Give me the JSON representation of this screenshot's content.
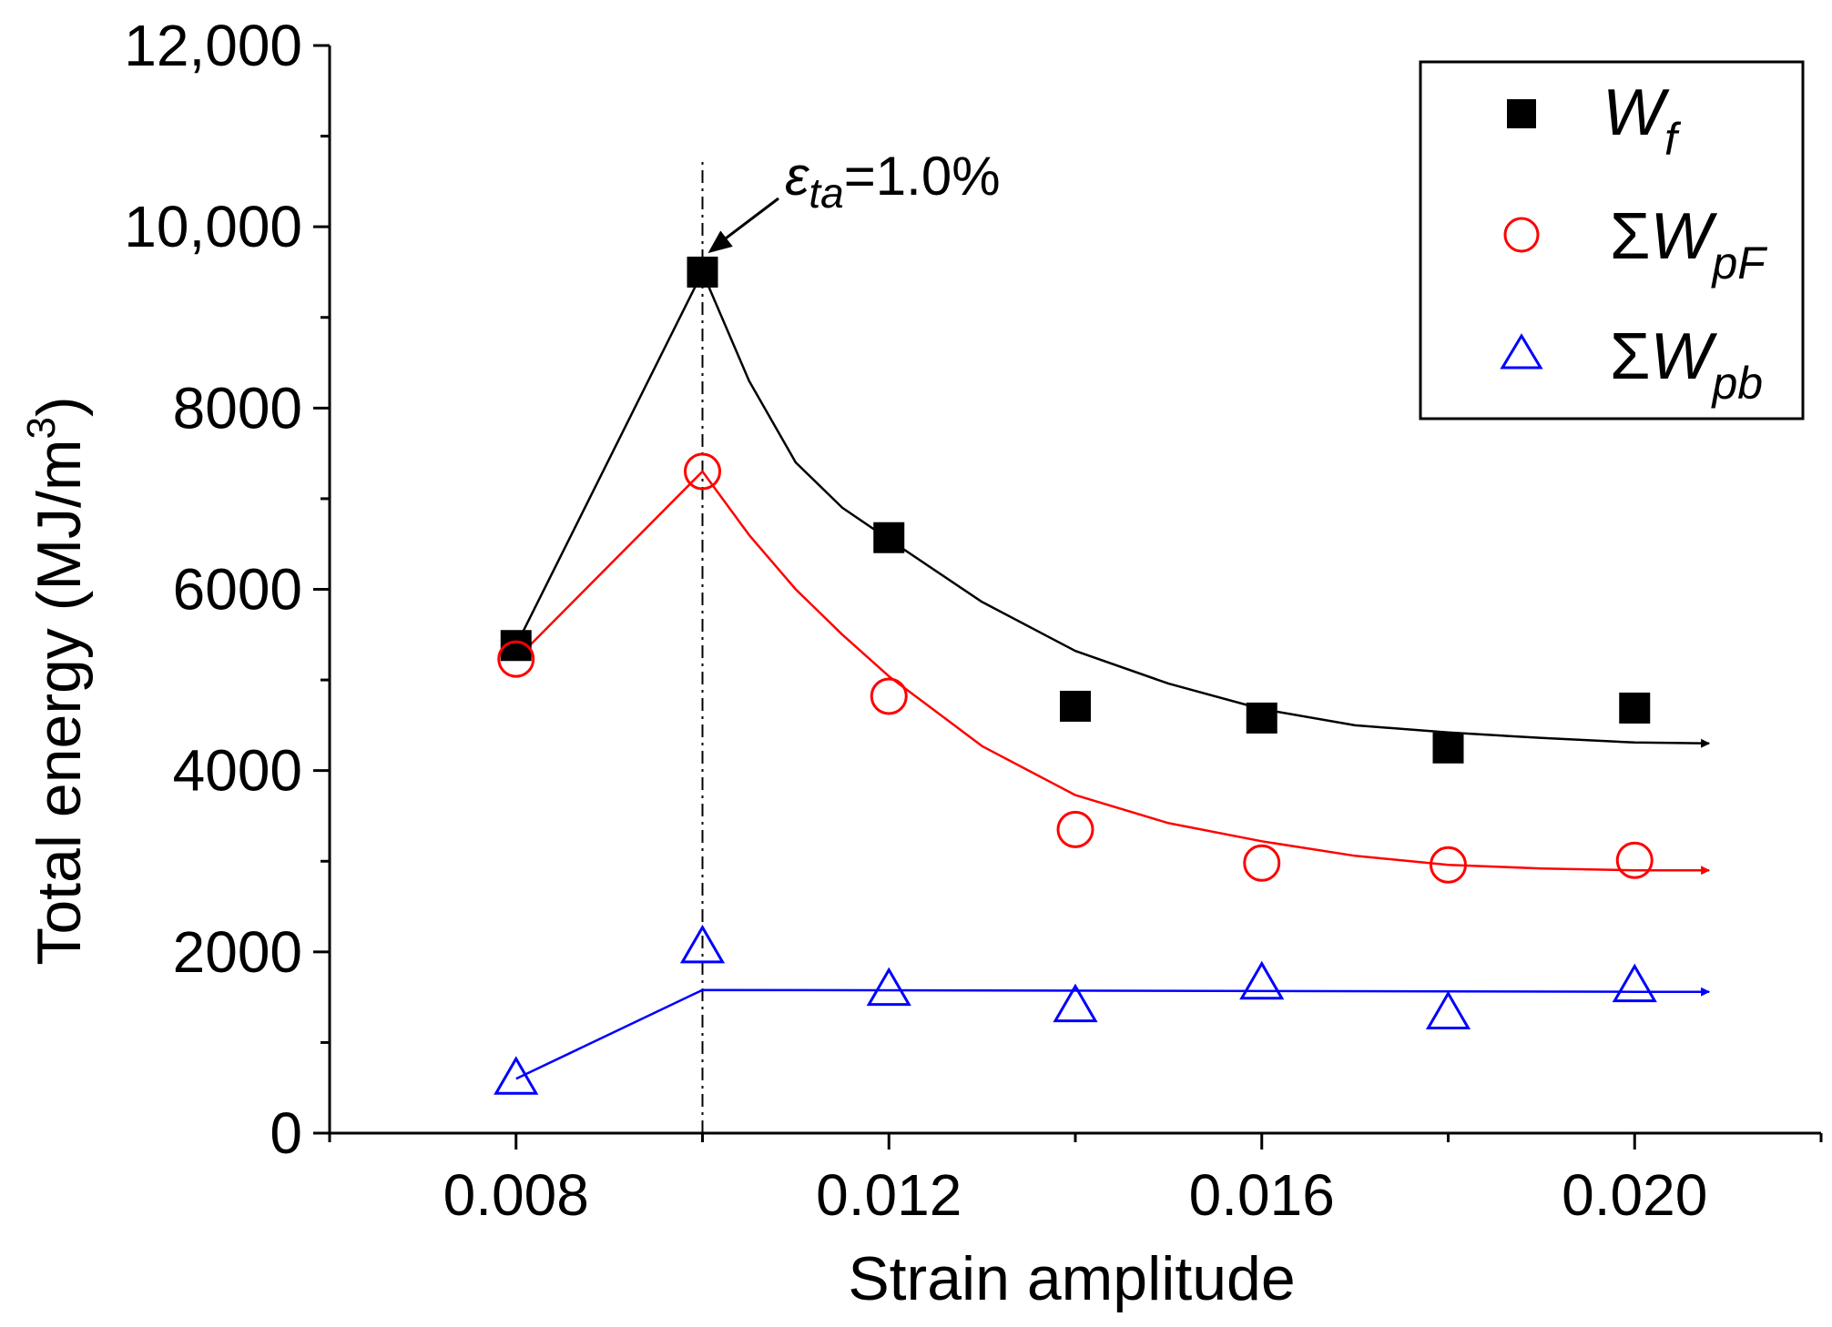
{
  "chart_data": {
    "type": "scatter",
    "title": "",
    "xlabel": "Strain amplitude",
    "ylabel": "Total energy (MJ/m³)",
    "ylabel_main": "Total energy (MJ/m",
    "ylabel_sup": "3",
    "ylabel_end": ")",
    "xlim": [
      0.006,
      0.022
    ],
    "ylim": [
      0,
      12000
    ],
    "xticks": [
      0.008,
      0.012,
      0.016,
      0.02
    ],
    "xtick_labels": [
      "0.008",
      "0.012",
      "0.016",
      "0.020"
    ],
    "minor_xticks": [
      0.006,
      0.01,
      0.014,
      0.018,
      0.022
    ],
    "yticks": [
      0,
      2000,
      4000,
      6000,
      8000,
      10000,
      12000
    ],
    "ytick_labels": [
      "0",
      "2000",
      "4000",
      "6000",
      "8000",
      "10,000",
      "12,000"
    ],
    "minor_yticks": [
      1000,
      3000,
      5000,
      7000,
      9000,
      11000
    ],
    "legend_position": "top-right",
    "series": [
      {
        "name": "Wf",
        "label_main": "W",
        "label_sub": "f",
        "sigma": "",
        "marker": "filled-square",
        "color": "#000000",
        "x": [
          0.008,
          0.01,
          0.012,
          0.014,
          0.016,
          0.018,
          0.02
        ],
        "y": [
          5380,
          9500,
          6570,
          4710,
          4580,
          4250,
          4690
        ],
        "trend": {
          "x": [
            0.008,
            0.01,
            0.0105,
            0.011,
            0.0115,
            0.012,
            0.013,
            0.014,
            0.015,
            0.016,
            0.017,
            0.018,
            0.019,
            0.02,
            0.0208
          ],
          "y": [
            5380,
            9500,
            8300,
            7400,
            6900,
            6550,
            5860,
            5320,
            4960,
            4680,
            4500,
            4420,
            4360,
            4310,
            4300
          ]
        }
      },
      {
        "name": "ΣWpF",
        "label_main": "W",
        "label_sub": "pF",
        "sigma": "Σ",
        "marker": "open-circle",
        "color": "#ff0000",
        "x": [
          0.008,
          0.01,
          0.012,
          0.014,
          0.016,
          0.018,
          0.02
        ],
        "y": [
          5230,
          7300,
          4820,
          3350,
          2980,
          2960,
          3010
        ],
        "trend": {
          "x": [
            0.008,
            0.01,
            0.0105,
            0.011,
            0.0115,
            0.012,
            0.013,
            0.014,
            0.015,
            0.016,
            0.017,
            0.018,
            0.019,
            0.02,
            0.0208
          ],
          "y": [
            5230,
            7300,
            6600,
            6000,
            5500,
            5040,
            4270,
            3730,
            3420,
            3220,
            3060,
            2960,
            2920,
            2900,
            2900
          ]
        }
      },
      {
        "name": "ΣWpb",
        "label_main": "W",
        "label_sub": "pb",
        "sigma": "Σ",
        "marker": "open-triangle",
        "color": "#0000ff",
        "x": [
          0.008,
          0.01,
          0.012,
          0.014,
          0.016,
          0.018,
          0.02
        ],
        "y": [
          600,
          2050,
          1580,
          1400,
          1650,
          1320,
          1620
        ],
        "trend": {
          "x": [
            0.008,
            0.01,
            0.02,
            0.0208
          ],
          "y": [
            600,
            1580,
            1560,
            1560
          ]
        }
      }
    ],
    "vline": {
      "x": 0.01
    },
    "annotation": {
      "symbol": "ε",
      "sub": "ta",
      "text": "=1.0%",
      "points_to": {
        "x": 0.01,
        "y": 9750
      }
    }
  }
}
